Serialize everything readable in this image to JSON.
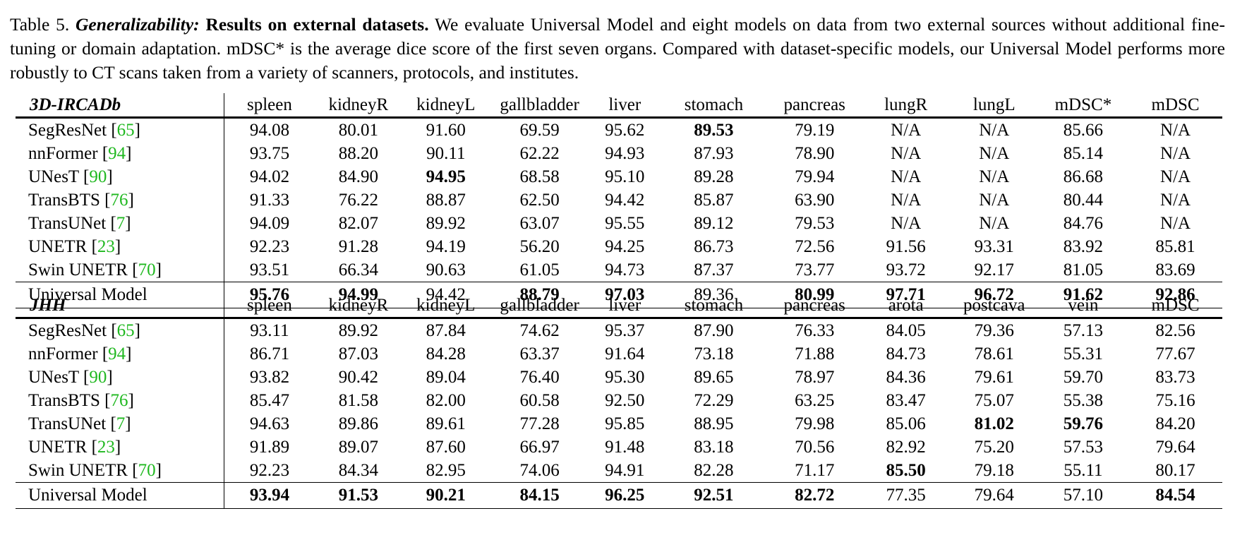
{
  "caption": {
    "label": "Table 5. ",
    "emph": "Generalizability:",
    "bold": " Results on external datasets.",
    "text": " We evaluate Universal Model and eight models on data from two external sources without additional fine-tuning or domain adaptation. mDSC* is the average dice score of the first seven organs. Compared with dataset-specific models, our Universal Model performs more robustly to CT scans taken from a variety of scanners, protocols, and institutes."
  },
  "tables": [
    {
      "section": "3D-IRCADb",
      "columns": [
        "spleen",
        "kidneyR",
        "kidneyL",
        "gallbladder",
        "liver",
        "stomach",
        "pancreas",
        "lungR",
        "lungL",
        "mDSC*",
        "mDSC"
      ],
      "rows": [
        {
          "model": "SegResNet [",
          "ref": "65",
          "end": "]",
          "values": [
            "94.08",
            "80.01",
            "91.60",
            "69.59",
            "95.62",
            "89.53",
            "79.19",
            "N/A",
            "N/A",
            "85.66",
            "N/A"
          ],
          "bold": [
            5
          ]
        },
        {
          "model": "nnFormer [",
          "ref": "94",
          "end": "]",
          "values": [
            "93.75",
            "88.20",
            "90.11",
            "62.22",
            "94.93",
            "87.93",
            "78.90",
            "N/A",
            "N/A",
            "85.14",
            "N/A"
          ],
          "bold": []
        },
        {
          "model": "UNesT [",
          "ref": "90",
          "end": "]",
          "values": [
            "94.02",
            "84.90",
            "94.95",
            "68.58",
            "95.10",
            "89.28",
            "79.94",
            "N/A",
            "N/A",
            "86.68",
            "N/A"
          ],
          "bold": [
            2
          ]
        },
        {
          "model": "TransBTS [",
          "ref": "76",
          "end": "]",
          "values": [
            "91.33",
            "76.22",
            "88.87",
            "62.50",
            "94.42",
            "85.87",
            "63.90",
            "N/A",
            "N/A",
            "80.44",
            "N/A"
          ],
          "bold": []
        },
        {
          "model": "TransUNet [",
          "ref": "7",
          "end": "]",
          "values": [
            "94.09",
            "82.07",
            "89.92",
            "63.07",
            "95.55",
            "89.12",
            "79.53",
            "N/A",
            "N/A",
            "84.76",
            "N/A"
          ],
          "bold": []
        },
        {
          "model": "UNETR [",
          "ref": "23",
          "end": "]",
          "values": [
            "92.23",
            "91.28",
            "94.19",
            "56.20",
            "94.25",
            "86.73",
            "72.56",
            "91.56",
            "93.31",
            "83.92",
            "85.81"
          ],
          "bold": []
        },
        {
          "model": "Swin UNETR [",
          "ref": "70",
          "end": "]",
          "values": [
            "93.51",
            "66.34",
            "90.63",
            "61.05",
            "94.73",
            "87.37",
            "73.77",
            "93.72",
            "92.17",
            "81.05",
            "83.69"
          ],
          "bold": []
        }
      ],
      "last": {
        "model": "Universal Model",
        "values": [
          "95.76",
          "94.99",
          "94.42",
          "88.79",
          "97.03",
          "89.36",
          "80.99",
          "97.71",
          "96.72",
          "91.62",
          "92.86"
        ],
        "bold": [
          0,
          1,
          3,
          4,
          6,
          7,
          8,
          9,
          10
        ]
      }
    },
    {
      "section": "JHH",
      "columns": [
        "spleen",
        "kidneyR",
        "kidneyL",
        "gallbladder",
        "liver",
        "stomach",
        "pancreas",
        "arota",
        "postcava",
        "vein",
        "mDSC"
      ],
      "rows": [
        {
          "model": "SegResNet [",
          "ref": "65",
          "end": "]",
          "values": [
            "93.11",
            "89.92",
            "87.84",
            "74.62",
            "95.37",
            "87.90",
            "76.33",
            "84.05",
            "79.36",
            "57.13",
            "82.56"
          ],
          "bold": []
        },
        {
          "model": "nnFormer [",
          "ref": "94",
          "end": "]",
          "values": [
            "86.71",
            "87.03",
            "84.28",
            "63.37",
            "91.64",
            "73.18",
            "71.88",
            "84.73",
            "78.61",
            "55.31",
            "77.67"
          ],
          "bold": []
        },
        {
          "model": "UNesT [",
          "ref": "90",
          "end": "]",
          "values": [
            "93.82",
            "90.42",
            "89.04",
            "76.40",
            "95.30",
            "89.65",
            "78.97",
            "84.36",
            "79.61",
            "59.70",
            "83.73"
          ],
          "bold": []
        },
        {
          "model": "TransBTS [",
          "ref": "76",
          "end": "]",
          "values": [
            "85.47",
            "81.58",
            "82.00",
            "60.58",
            "92.50",
            "72.29",
            "63.25",
            "83.47",
            "75.07",
            "55.38",
            "75.16"
          ],
          "bold": []
        },
        {
          "model": "TransUNet [",
          "ref": "7",
          "end": "]",
          "values": [
            "94.63",
            "89.86",
            "89.61",
            "77.28",
            "95.85",
            "88.95",
            "79.98",
            "85.06",
            "81.02",
            "59.76",
            "84.20"
          ],
          "bold": [
            8,
            9
          ]
        },
        {
          "model": "UNETR [",
          "ref": "23",
          "end": "]",
          "values": [
            "91.89",
            "89.07",
            "87.60",
            "66.97",
            "91.48",
            "83.18",
            "70.56",
            "82.92",
            "75.20",
            "57.53",
            "79.64"
          ],
          "bold": []
        },
        {
          "model": "Swin UNETR [",
          "ref": "70",
          "end": "]",
          "values": [
            "92.23",
            "84.34",
            "82.95",
            "74.06",
            "94.91",
            "82.28",
            "71.17",
            "85.50",
            "79.18",
            "55.11",
            "80.17"
          ],
          "bold": [
            7
          ]
        }
      ],
      "last": {
        "model": "Universal Model",
        "values": [
          "93.94",
          "91.53",
          "90.21",
          "84.15",
          "96.25",
          "92.51",
          "82.72",
          "77.35",
          "79.64",
          "57.10",
          "84.54"
        ],
        "bold": [
          0,
          1,
          2,
          3,
          4,
          5,
          6,
          10
        ]
      }
    }
  ]
}
